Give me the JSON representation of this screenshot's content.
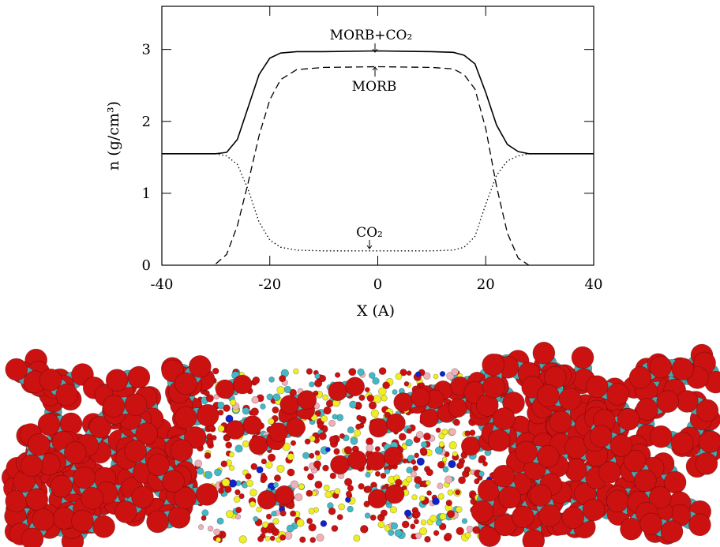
{
  "chart_data": {
    "type": "line",
    "xlabel": "X (A)",
    "ylabel": "n (g/cm³)",
    "x": [
      -40,
      -30,
      -28,
      -26,
      -24,
      -22,
      -20,
      -18,
      -15,
      -10,
      0,
      10,
      14,
      16,
      18,
      20,
      22,
      24,
      26,
      28,
      30,
      40
    ],
    "series": [
      {
        "name": "MORB+CO₂",
        "color": "#000000",
        "dash": "solid",
        "values": [
          1.55,
          1.55,
          1.57,
          1.75,
          2.2,
          2.65,
          2.88,
          2.95,
          2.97,
          2.97,
          2.98,
          2.97,
          2.96,
          2.92,
          2.8,
          2.4,
          1.95,
          1.68,
          1.58,
          1.55,
          1.55,
          1.55
        ]
      },
      {
        "name": "MORB",
        "color": "#000000",
        "dash": "dashed",
        "values": [
          null,
          0.02,
          0.15,
          0.55,
          1.15,
          1.8,
          2.3,
          2.58,
          2.72,
          2.75,
          2.76,
          2.75,
          2.73,
          2.65,
          2.45,
          1.9,
          1.1,
          0.45,
          0.1,
          0.0,
          null,
          null
        ]
      },
      {
        "name": "CO₂",
        "color": "#000000",
        "dash": "dotted",
        "values": [
          1.55,
          1.55,
          1.52,
          1.4,
          1.05,
          0.6,
          0.35,
          0.25,
          0.21,
          0.2,
          0.2,
          0.2,
          0.21,
          0.25,
          0.4,
          0.85,
          1.25,
          1.45,
          1.52,
          1.55,
          1.55,
          1.55
        ]
      }
    ],
    "xlim": [
      -40,
      40
    ],
    "xticks": [
      -40,
      -20,
      0,
      20,
      40
    ],
    "ylim": [
      0,
      3.6
    ],
    "yticks": [
      0,
      1,
      2,
      3
    ]
  }
}
